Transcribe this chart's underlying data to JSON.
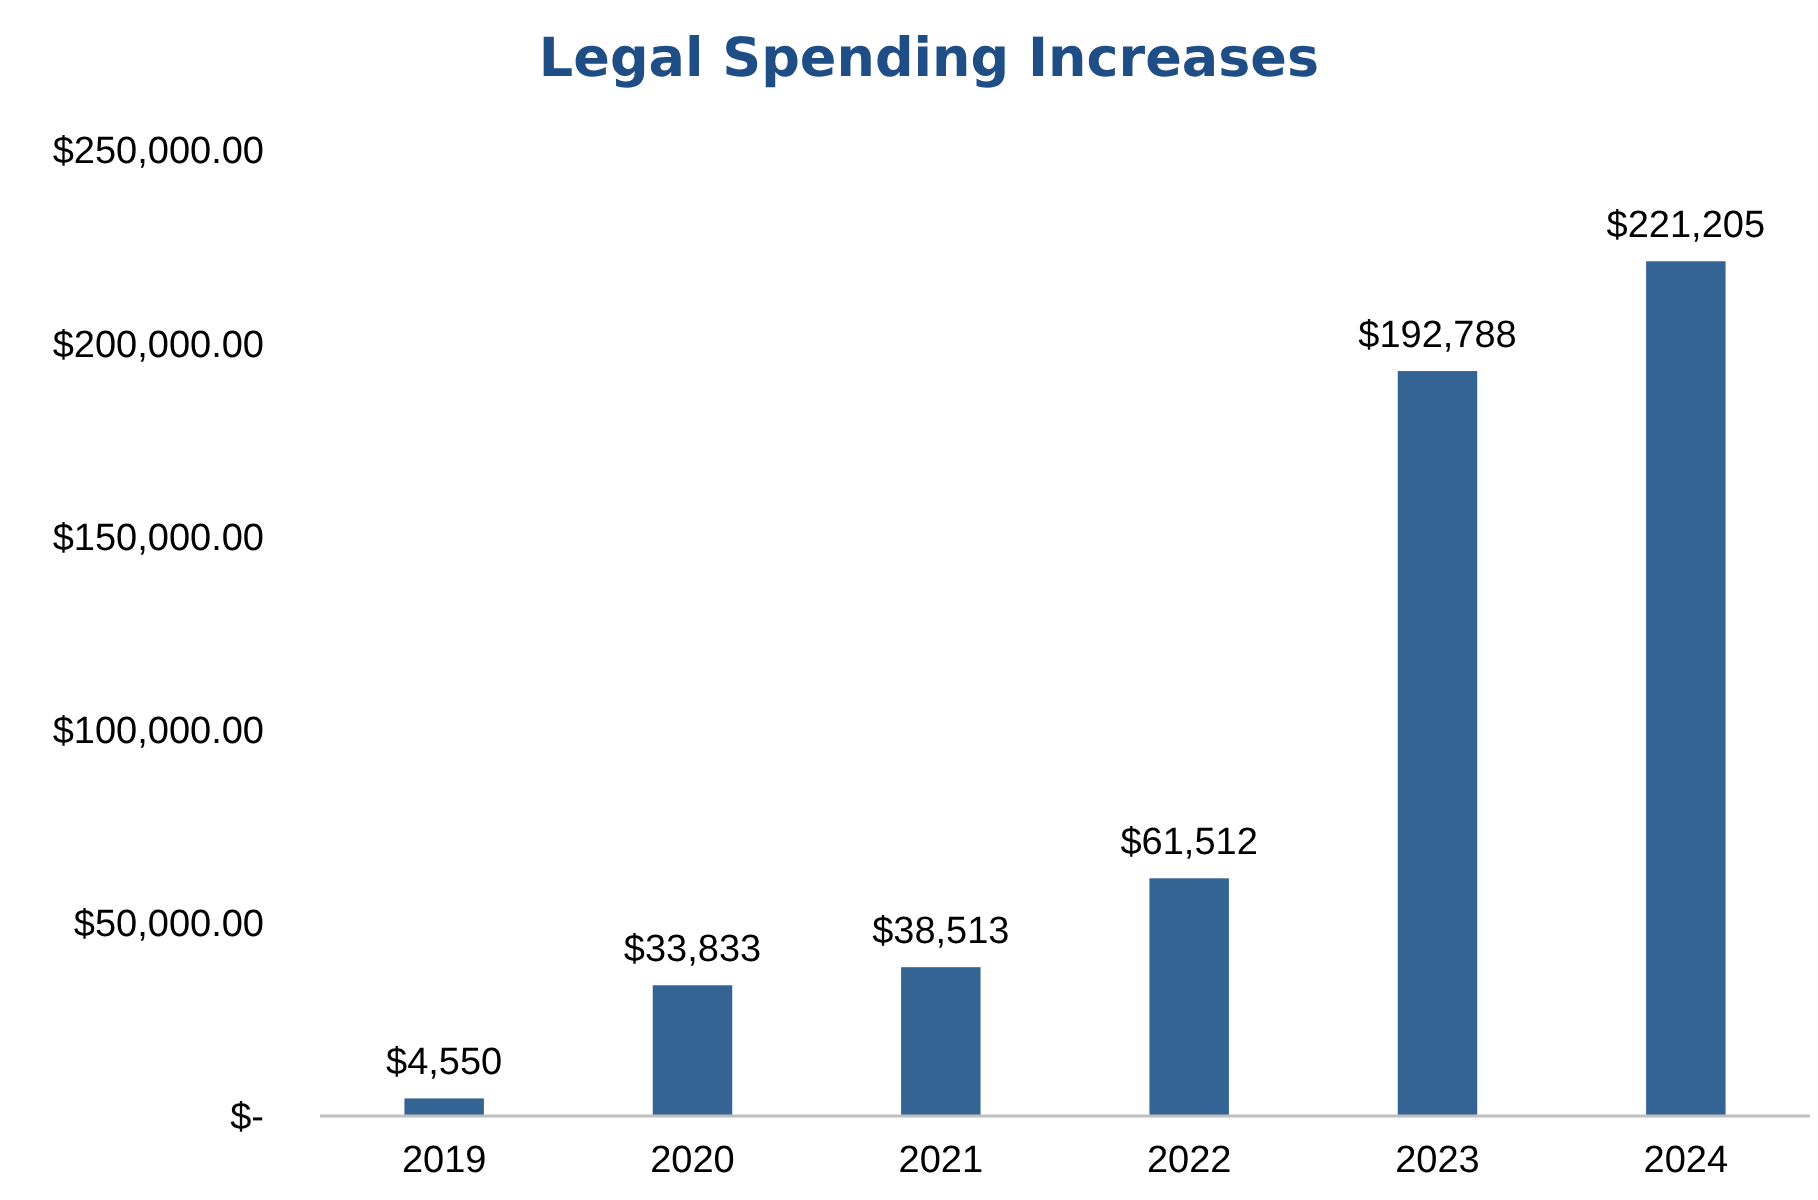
{
  "chart_data": {
    "type": "bar",
    "title": "Legal Spending Increases",
    "categories": [
      "2019",
      "2020",
      "2021",
      "2022",
      "2023",
      "2024"
    ],
    "values": [
      4550,
      33833,
      38513,
      61512,
      192788,
      221205
    ],
    "value_labels": [
      "$4,550",
      "$33,833",
      "$38,513",
      "$61,512",
      "$192,788",
      "$221,205"
    ],
    "color": "#336494",
    "ylim": [
      0,
      250000
    ],
    "yticks": [
      {
        "value": 0,
        "label": "$-"
      },
      {
        "value": 50000,
        "label": "$50,000.00"
      },
      {
        "value": 100000,
        "label": "$100,000.00"
      },
      {
        "value": 150000,
        "label": "$150,000.00"
      },
      {
        "value": 200000,
        "label": "$200,000.00"
      },
      {
        "value": 250000,
        "label": "$250,000.00"
      }
    ],
    "grid": false
  }
}
